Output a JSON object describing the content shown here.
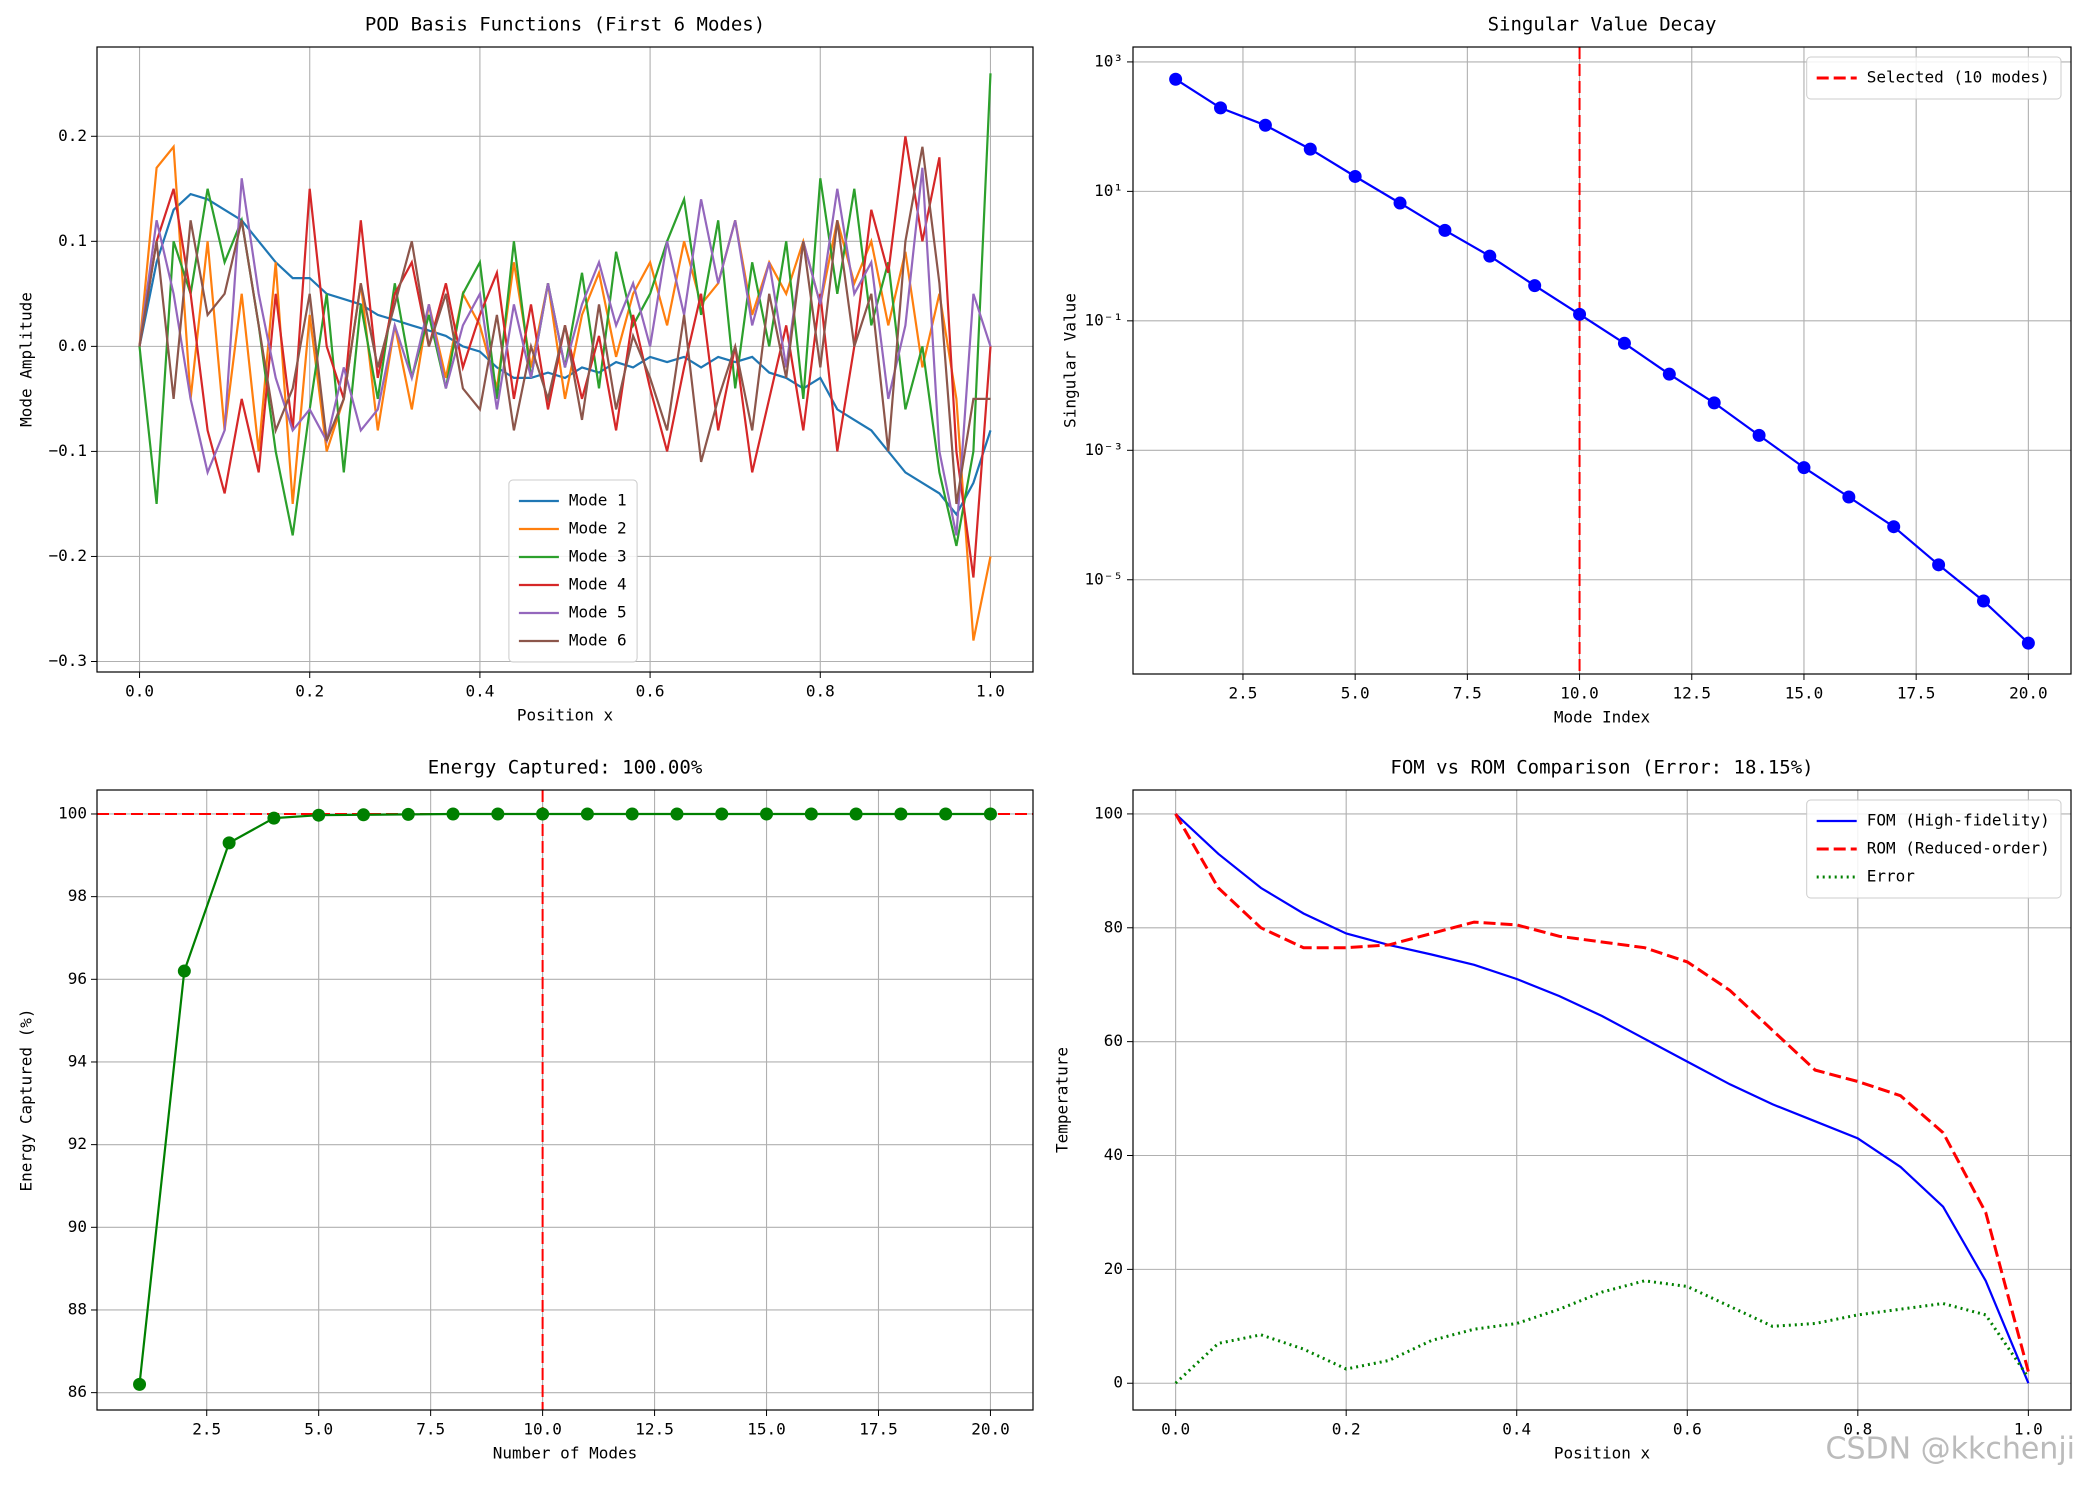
{
  "chart_data": [
    {
      "type": "line",
      "title": "POD Basis Functions (First 6 Modes)",
      "x_label": "Position x",
      "y_label": "Mode Amplitude",
      "x": [
        0,
        0.02,
        0.04,
        0.06,
        0.08,
        0.1,
        0.12,
        0.14,
        0.16,
        0.18,
        0.2,
        0.22,
        0.24,
        0.26,
        0.28,
        0.3,
        0.32,
        0.34,
        0.36,
        0.38,
        0.4,
        0.42,
        0.44,
        0.46,
        0.48,
        0.5,
        0.52,
        0.54,
        0.56,
        0.58,
        0.6,
        0.62,
        0.64,
        0.66,
        0.68,
        0.7,
        0.72,
        0.74,
        0.76,
        0.78,
        0.8,
        0.82,
        0.84,
        0.86,
        0.88,
        0.9,
        0.92,
        0.94,
        0.96,
        0.98,
        1.0
      ],
      "series": [
        {
          "name": "Mode 1",
          "color": "#1f77b4",
          "style": "solid",
          "values": [
            0,
            0.08,
            0.13,
            0.145,
            0.14,
            0.13,
            0.12,
            0.1,
            0.08,
            0.065,
            0.065,
            0.05,
            0.045,
            0.04,
            0.03,
            0.025,
            0.02,
            0.015,
            0.01,
            0.0,
            -0.005,
            -0.02,
            -0.03,
            -0.03,
            -0.025,
            -0.03,
            -0.02,
            -0.025,
            -0.015,
            -0.02,
            -0.01,
            -0.015,
            -0.01,
            -0.02,
            -0.01,
            -0.015,
            -0.01,
            -0.025,
            -0.03,
            -0.04,
            -0.03,
            -0.06,
            -0.07,
            -0.08,
            -0.1,
            -0.12,
            -0.13,
            -0.14,
            -0.16,
            -0.13,
            -0.08
          ]
        },
        {
          "name": "Mode 2",
          "color": "#ff7f0e",
          "style": "solid",
          "values": [
            0,
            0.17,
            0.19,
            -0.05,
            0.1,
            -0.08,
            0.05,
            -0.1,
            0.08,
            -0.15,
            0.03,
            -0.1,
            -0.05,
            0.06,
            -0.08,
            0.02,
            -0.06,
            0.04,
            -0.03,
            0.05,
            0.02,
            -0.04,
            0.08,
            -0.02,
            0.06,
            -0.05,
            0.03,
            0.07,
            -0.01,
            0.05,
            0.08,
            0.02,
            0.1,
            0.04,
            0.06,
            0.12,
            0.03,
            0.08,
            0.05,
            0.1,
            0.04,
            0.12,
            0.06,
            0.1,
            0.02,
            0.09,
            -0.02,
            0.05,
            -0.05,
            -0.28,
            -0.2
          ]
        },
        {
          "name": "Mode 3",
          "color": "#2ca02c",
          "style": "solid",
          "values": [
            0,
            -0.15,
            0.1,
            0.05,
            0.15,
            0.08,
            0.12,
            0.02,
            -0.1,
            -0.18,
            -0.06,
            0.05,
            -0.12,
            0.04,
            -0.05,
            0.06,
            -0.03,
            0.03,
            -0.04,
            0.05,
            0.08,
            -0.05,
            0.1,
            -0.03,
            0.06,
            -0.02,
            0.07,
            -0.04,
            0.09,
            0.02,
            0.05,
            0.1,
            0.14,
            0.03,
            0.12,
            -0.04,
            0.08,
            0.0,
            0.1,
            -0.05,
            0.16,
            0.05,
            0.15,
            0.02,
            0.08,
            -0.06,
            0.0,
            -0.12,
            -0.19,
            -0.1,
            0.26
          ]
        },
        {
          "name": "Mode 4",
          "color": "#d62728",
          "style": "solid",
          "values": [
            0,
            0.1,
            0.15,
            0.05,
            -0.08,
            -0.14,
            -0.05,
            -0.12,
            0.05,
            -0.08,
            0.15,
            0.0,
            -0.05,
            0.12,
            -0.03,
            0.05,
            0.08,
            0.0,
            0.06,
            -0.02,
            0.03,
            0.07,
            -0.05,
            0.04,
            -0.06,
            0.02,
            -0.05,
            0.01,
            -0.08,
            0.03,
            -0.04,
            -0.1,
            -0.02,
            0.05,
            -0.08,
            0.0,
            -0.12,
            -0.05,
            0.02,
            -0.08,
            0.05,
            -0.1,
            0.0,
            0.13,
            0.07,
            0.2,
            0.1,
            0.18,
            -0.1,
            -0.22,
            0.0
          ]
        },
        {
          "name": "Mode 5",
          "color": "#9467bd",
          "style": "solid",
          "values": [
            0,
            0.12,
            0.05,
            -0.05,
            -0.12,
            -0.08,
            0.16,
            0.05,
            -0.03,
            -0.08,
            -0.06,
            -0.09,
            -0.02,
            -0.08,
            -0.06,
            0.02,
            -0.03,
            0.04,
            -0.04,
            0.02,
            0.05,
            -0.06,
            0.04,
            -0.03,
            0.06,
            -0.02,
            0.04,
            0.08,
            0.02,
            0.06,
            0.0,
            0.1,
            0.03,
            0.14,
            0.06,
            0.12,
            0.02,
            0.08,
            -0.02,
            0.1,
            0.04,
            0.15,
            0.05,
            0.08,
            -0.05,
            0.02,
            0.17,
            -0.1,
            -0.18,
            0.05,
            0.0
          ]
        },
        {
          "name": "Mode 6",
          "color": "#8c564b",
          "style": "solid",
          "values": [
            0,
            0.1,
            -0.05,
            0.12,
            0.03,
            0.05,
            0.12,
            0.02,
            -0.08,
            -0.04,
            0.05,
            -0.09,
            -0.05,
            0.06,
            -0.02,
            0.04,
            0.1,
            0.0,
            0.05,
            -0.04,
            -0.06,
            0.03,
            -0.08,
            0.0,
            -0.05,
            0.02,
            -0.07,
            0.04,
            -0.06,
            0.01,
            -0.03,
            -0.08,
            0.03,
            -0.11,
            -0.05,
            0.0,
            -0.08,
            0.05,
            -0.03,
            0.1,
            -0.02,
            0.12,
            0.0,
            0.05,
            -0.1,
            0.1,
            0.19,
            0.06,
            -0.15,
            -0.05,
            -0.05
          ]
        }
      ],
      "xlim": [
        -0.05,
        1.05
      ],
      "ylim": [
        -0.31,
        0.285
      ],
      "xticks": [
        {
          "value": 0,
          "label": "0.0"
        },
        0.2,
        0.4,
        0.6,
        0.8,
        {
          "value": 1,
          "label": "1.0"
        }
      ],
      "yticks": [
        {
          "value": -0.3,
          "label": "−0.3"
        },
        {
          "value": -0.2,
          "label": "−0.2"
        },
        {
          "value": -0.1,
          "label": "−0.1"
        },
        {
          "value": 0,
          "label": "0.0"
        },
        0.1,
        0.2
      ],
      "grid": true,
      "legend": "lower center"
    },
    {
      "type": "line",
      "title": "Singular Value Decay",
      "x_label": "Mode Index",
      "y_label": "Singular Value",
      "log_scale": true,
      "x": [
        1,
        2,
        3,
        4,
        5,
        6,
        7,
        8,
        9,
        10,
        11,
        12,
        13,
        14,
        15,
        16,
        17,
        18,
        19,
        20
      ],
      "series": [
        {
          "color": "#0000ff",
          "style": "solid",
          "marker": true,
          "values": [
            540,
            195,
            105,
            45,
            17,
            6.6,
            2.5,
            1.0,
            0.35,
            0.126,
            0.045,
            0.015,
            0.0054,
            0.0017,
            0.00054,
            0.00019,
            6.6e-05,
            1.7e-05,
            4.7e-06,
            1.05e-06
          ]
        }
      ],
      "reference_lines": [
        {
          "orientation": "vertical",
          "value": 10,
          "color": "#ff0000",
          "style": "dashed",
          "name": "Selected (10 modes)"
        }
      ],
      "xlim": [
        0.05,
        20.95
      ],
      "ylim": [
        3.5e-07,
        1700
      ],
      "xticks": [
        2.5,
        {
          "value": 5,
          "label": "5.0"
        },
        7.5,
        {
          "value": 10,
          "label": "10.0"
        },
        12.5,
        {
          "value": 15,
          "label": "15.0"
        },
        17.5,
        {
          "value": 20,
          "label": "20.0"
        }
      ],
      "yticks": [
        {
          "value": 1e-05,
          "label": "10⁻⁵"
        },
        {
          "value": 0.001,
          "label": "10⁻³"
        },
        {
          "value": 0.1,
          "label": "10⁻¹"
        },
        {
          "value": 10,
          "label": "10¹"
        },
        {
          "value": 1000,
          "label": "10³"
        }
      ],
      "grid": true,
      "legend": "upper right"
    },
    {
      "type": "line",
      "title": "Energy Captured: 100.00%",
      "x_label": "Number of Modes",
      "y_label": "Energy Captured (%)",
      "x": [
        1,
        2,
        3,
        4,
        5,
        6,
        7,
        8,
        9,
        10,
        11,
        12,
        13,
        14,
        15,
        16,
        17,
        18,
        19,
        20
      ],
      "series": [
        {
          "color": "#008000",
          "style": "solid",
          "marker": true,
          "values": [
            86.2,
            96.2,
            99.3,
            99.9,
            99.97,
            99.98,
            99.99,
            100,
            100,
            100,
            100,
            100,
            100,
            100,
            100,
            100,
            100,
            100,
            100,
            100
          ]
        }
      ],
      "reference_lines": [
        {
          "orientation": "horizontal",
          "value": 100,
          "color": "#ff0000",
          "style": "dashed"
        },
        {
          "orientation": "vertical",
          "value": 10,
          "color": "#ff0000",
          "style": "dashed"
        }
      ],
      "xlim": [
        0.05,
        20.95
      ],
      "ylim": [
        85.58,
        100.58
      ],
      "xticks": [
        2.5,
        {
          "value": 5,
          "label": "5.0"
        },
        7.5,
        {
          "value": 10,
          "label": "10.0"
        },
        12.5,
        {
          "value": 15,
          "label": "15.0"
        },
        17.5,
        {
          "value": 20,
          "label": "20.0"
        }
      ],
      "yticks": [
        86,
        88,
        90,
        92,
        94,
        96,
        98,
        100
      ],
      "grid": true
    },
    {
      "type": "line",
      "title": "FOM vs ROM Comparison (Error: 18.15%)",
      "x_label": "Position x",
      "y_label": "Temperature",
      "x": [
        0,
        0.05,
        0.1,
        0.15,
        0.2,
        0.25,
        0.3,
        0.35,
        0.4,
        0.45,
        0.5,
        0.55,
        0.6,
        0.65,
        0.7,
        0.75,
        0.8,
        0.85,
        0.9,
        0.95,
        1.0
      ],
      "series": [
        {
          "name": "FOM (High-fidelity)",
          "color": "#0000ff",
          "style": "solid",
          "values": [
            100,
            93,
            87,
            82.5,
            79,
            77,
            75.3,
            73.5,
            71,
            68,
            64.5,
            60.5,
            56.5,
            52.5,
            49,
            46,
            43,
            38,
            31,
            18,
            0
          ]
        },
        {
          "name": "ROM (Reduced-order)",
          "color": "#ff0000",
          "style": "dashed",
          "values": [
            100,
            87,
            80,
            76.5,
            76.5,
            77,
            79,
            81,
            80.5,
            78.5,
            77.5,
            76.5,
            74,
            69,
            62,
            55,
            53,
            50.5,
            44,
            30,
            2
          ]
        },
        {
          "name": "Error",
          "color": "#008000",
          "style": "dotted",
          "values": [
            0,
            7,
            8.5,
            6,
            2.5,
            4,
            7.5,
            9.5,
            10.5,
            13,
            16,
            18,
            17,
            13.5,
            10,
            10.5,
            12,
            13,
            14,
            12,
            1
          ]
        }
      ],
      "xlim": [
        -0.05,
        1.05
      ],
      "ylim": [
        -4.7,
        104.2
      ],
      "xticks": [
        {
          "value": 0,
          "label": "0.0"
        },
        0.2,
        0.4,
        0.6,
        0.8,
        {
          "value": 1,
          "label": "1.0"
        }
      ],
      "yticks": [
        0,
        20,
        40,
        60,
        80,
        100
      ],
      "grid": true,
      "legend": "upper right"
    }
  ],
  "watermark": "CSDN @kkchenji"
}
